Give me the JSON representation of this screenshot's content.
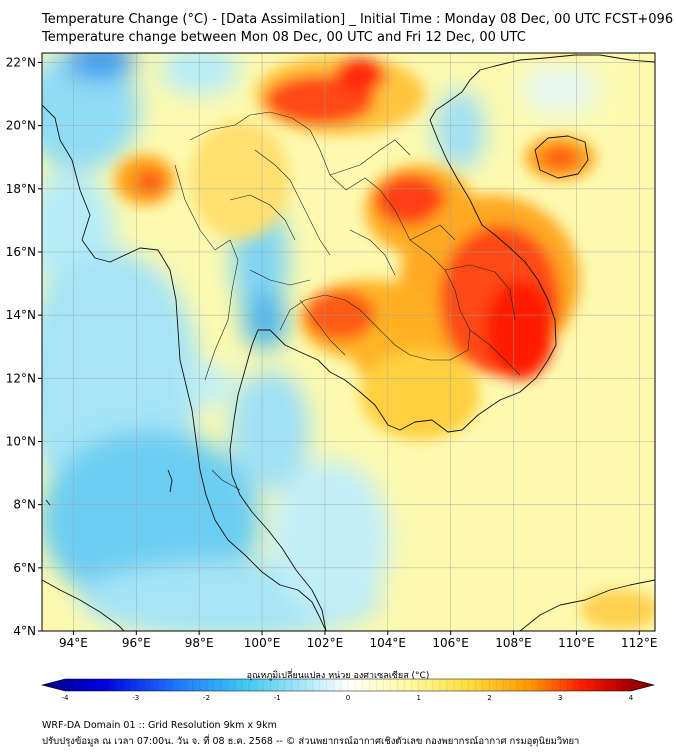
{
  "header": {
    "title_line1": "Temperature Change (°C) - [Data Assimilation] _ Initial Time : Monday 08 Dec, 00 UTC FCST+096",
    "title_line2": "Temperature change between Mon 08 Dec, 00 UTC and Fri 12 Dec, 00 UTC"
  },
  "map": {
    "lon_range": [
      93,
      112.5
    ],
    "lat_range": [
      4,
      22.3
    ],
    "lon_ticks": [
      "94°E",
      "96°E",
      "98°E",
      "100°E",
      "102°E",
      "104°E",
      "106°E",
      "108°E",
      "110°E",
      "112°E"
    ],
    "lat_ticks": [
      "22°N",
      "20°N",
      "18°N",
      "16°N",
      "14°N",
      "12°N",
      "10°N",
      "8°N",
      "6°N",
      "4°N"
    ],
    "grid": true,
    "background_color": "#fdfab0"
  },
  "colorbar": {
    "title": "อุณหภูมิเปลี่ยนแปลง หน่วย องศาเซลเซียส (°C)",
    "ticks": [
      "-4",
      "-3",
      "-2",
      "-1",
      "0",
      "1",
      "2",
      "3",
      "4"
    ],
    "range": [
      -4,
      4
    ],
    "colors": [
      "#000080",
      "#0000ff",
      "#1e90ff",
      "#3cc8f0",
      "#a0e6f8",
      "#ffffff",
      "#fffaaa",
      "#ffdc3c",
      "#ff9600",
      "#ff1e00",
      "#b40000",
      "#780000"
    ]
  },
  "footer": {
    "line1": "WRF-DA Domain 01 :: Grid Resolution 9km x 9km",
    "line2": "ปรับปรุงข้อมูล ณ เวลา 07:00น. วัน จ. ที่ 08 ธ.ค. 2568 -- © ส่วนพยากรณ์อากาศเชิงตัวเลข กองพยากรณ์อากาศ กรมอุตุนิยมวิทยา"
  }
}
